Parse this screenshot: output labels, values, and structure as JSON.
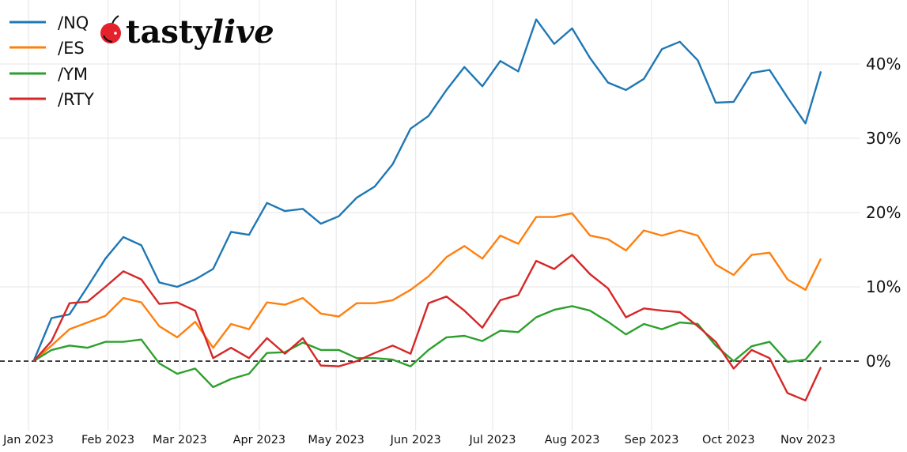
{
  "logo": {
    "text": "tastylive",
    "part1": "tasty",
    "part2": "live"
  },
  "chart_data": {
    "type": "line",
    "title": "",
    "xlabel": "",
    "ylabel": "",
    "ylim": [
      -8.5,
      48
    ],
    "xlim": [
      "2022-12-31",
      "2023-11-15"
    ],
    "grid": true,
    "legend_position": "top-left",
    "zero_line": "dashed",
    "y_ticks": [
      {
        "value": 0,
        "label": "0%"
      },
      {
        "value": 10,
        "label": "10%"
      },
      {
        "value": 20,
        "label": "20%"
      },
      {
        "value": 30,
        "label": "30%"
      },
      {
        "value": 40,
        "label": "40%"
      }
    ],
    "x_ticks": [
      {
        "date": "2023-01-01",
        "label": "Jan 2023"
      },
      {
        "date": "2023-02-01",
        "label": "Feb 2023"
      },
      {
        "date": "2023-03-01",
        "label": "Mar 2023"
      },
      {
        "date": "2023-04-01",
        "label": "Apr 2023"
      },
      {
        "date": "2023-05-01",
        "label": "May 2023"
      },
      {
        "date": "2023-06-01",
        "label": "Jun 2023"
      },
      {
        "date": "2023-07-01",
        "label": "Jul 2023"
      },
      {
        "date": "2023-08-01",
        "label": "Aug 2023"
      },
      {
        "date": "2023-09-01",
        "label": "Sep 2023"
      },
      {
        "date": "2023-10-01",
        "label": "Oct 2023"
      },
      {
        "date": "2023-11-01",
        "label": "Nov 2023"
      }
    ],
    "x": [
      "2023-01-03",
      "2023-01-10",
      "2023-01-17",
      "2023-01-24",
      "2023-01-31",
      "2023-02-07",
      "2023-02-14",
      "2023-02-21",
      "2023-02-28",
      "2023-03-07",
      "2023-03-14",
      "2023-03-21",
      "2023-03-28",
      "2023-04-04",
      "2023-04-11",
      "2023-04-18",
      "2023-04-25",
      "2023-05-02",
      "2023-05-09",
      "2023-05-16",
      "2023-05-23",
      "2023-05-30",
      "2023-06-06",
      "2023-06-13",
      "2023-06-20",
      "2023-06-27",
      "2023-07-04",
      "2023-07-11",
      "2023-07-18",
      "2023-07-25",
      "2023-08-01",
      "2023-08-08",
      "2023-08-15",
      "2023-08-22",
      "2023-08-29",
      "2023-09-05",
      "2023-09-12",
      "2023-09-19",
      "2023-09-26",
      "2023-10-03",
      "2023-10-10",
      "2023-10-17",
      "2023-10-24",
      "2023-10-31",
      "2023-11-06"
    ],
    "series": [
      {
        "name": "/NQ",
        "color": "#1f77b4",
        "values": [
          0,
          5.8,
          6.3,
          10.0,
          13.8,
          16.7,
          15.6,
          10.6,
          10.0,
          11.0,
          12.4,
          17.4,
          17.0,
          21.3,
          20.2,
          20.5,
          18.5,
          19.5,
          22.0,
          23.5,
          26.5,
          31.3,
          33.0,
          36.5,
          39.6,
          37.0,
          40.4,
          39.0,
          46.0,
          42.7,
          44.8,
          40.8,
          37.5,
          36.5,
          38.0,
          42.0,
          43.0,
          40.5,
          34.8,
          34.9,
          38.8,
          39.2,
          35.5,
          32.0,
          39.0
        ]
      },
      {
        "name": "/ES",
        "color": "#ff7f0e",
        "values": [
          0,
          2.1,
          4.3,
          5.2,
          6.1,
          8.5,
          7.9,
          4.7,
          3.2,
          5.3,
          1.8,
          5.0,
          4.3,
          7.9,
          7.6,
          8.5,
          6.4,
          6.0,
          7.8,
          7.8,
          8.2,
          9.6,
          11.4,
          14.0,
          15.5,
          13.8,
          16.9,
          15.8,
          19.4,
          19.4,
          19.9,
          16.9,
          16.4,
          14.9,
          17.6,
          16.9,
          17.6,
          16.9,
          13.0,
          11.6,
          14.3,
          14.6,
          11.0,
          9.6,
          13.8
        ]
      },
      {
        "name": "/YM",
        "color": "#2ca02c",
        "values": [
          0,
          1.5,
          2.1,
          1.8,
          2.6,
          2.6,
          2.9,
          -0.3,
          -1.7,
          -1.0,
          -3.5,
          -2.4,
          -1.7,
          1.1,
          1.2,
          2.5,
          1.5,
          1.5,
          0.4,
          0.4,
          0.2,
          -0.7,
          1.5,
          3.2,
          3.4,
          2.7,
          4.1,
          3.9,
          5.9,
          6.9,
          7.4,
          6.8,
          5.3,
          3.6,
          5.0,
          4.3,
          5.2,
          5.0,
          2.1,
          0.0,
          2.0,
          2.6,
          -0.1,
          0.2,
          2.7
        ]
      },
      {
        "name": "/RTY",
        "color": "#d62728",
        "values": [
          0,
          2.7,
          7.8,
          8.0,
          10.0,
          12.1,
          11.0,
          7.7,
          7.9,
          6.8,
          0.4,
          1.8,
          0.4,
          3.1,
          1.0,
          3.1,
          -0.6,
          -0.7,
          0.0,
          1.1,
          2.1,
          1.0,
          7.8,
          8.7,
          6.8,
          4.5,
          8.2,
          8.9,
          13.5,
          12.4,
          14.3,
          11.7,
          9.8,
          5.9,
          7.1,
          6.8,
          6.6,
          4.7,
          2.6,
          -1.0,
          1.5,
          0.4,
          -4.3,
          -5.3,
          -0.8
        ]
      }
    ]
  }
}
